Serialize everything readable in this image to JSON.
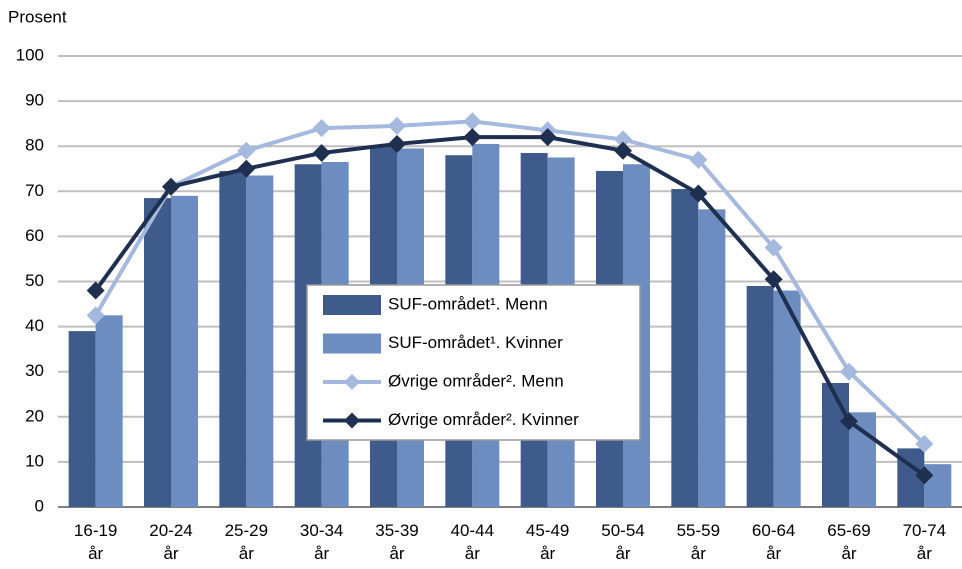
{
  "chart_data": {
    "type": "bar-line",
    "y_label": "Prosent",
    "categories": [
      "16-19 år",
      "20-24 år",
      "25-29 år",
      "30-34 år",
      "35-39 år",
      "40-44 år",
      "45-49 år",
      "50-54 år",
      "55-59 år",
      "60-64 år",
      "65-69 år",
      "70-74 år"
    ],
    "ylim": [
      0,
      100
    ],
    "yticks": [
      0,
      10,
      20,
      30,
      40,
      50,
      60,
      70,
      80,
      90,
      100
    ],
    "grid": true,
    "series": [
      {
        "name": "SUF-området¹. Menn",
        "kind": "bar",
        "color": "#3f5b8c",
        "values": [
          39,
          68.5,
          74.5,
          76,
          80,
          78,
          78.5,
          74.5,
          70.5,
          49,
          27.5,
          13
        ]
      },
      {
        "name": "SUF-området¹. Kvinner",
        "kind": "bar",
        "color": "#6d8dc0",
        "values": [
          42.5,
          69,
          73.5,
          76.5,
          79.5,
          80.5,
          77.5,
          76,
          66,
          48,
          21,
          9.5
        ]
      },
      {
        "name": "Øvrige områder². Menn",
        "kind": "line",
        "color": "#a5b8dd",
        "values": [
          42.5,
          71,
          79,
          84,
          84.5,
          85.5,
          83.5,
          81.5,
          77,
          57.5,
          30,
          14
        ]
      },
      {
        "name": "Øvrige områder². Kvinner",
        "kind": "line",
        "color": "#1e2f4f",
        "values": [
          48,
          71,
          75,
          78.5,
          80.5,
          82,
          82,
          79,
          69.5,
          50.5,
          19,
          7
        ]
      }
    ]
  }
}
